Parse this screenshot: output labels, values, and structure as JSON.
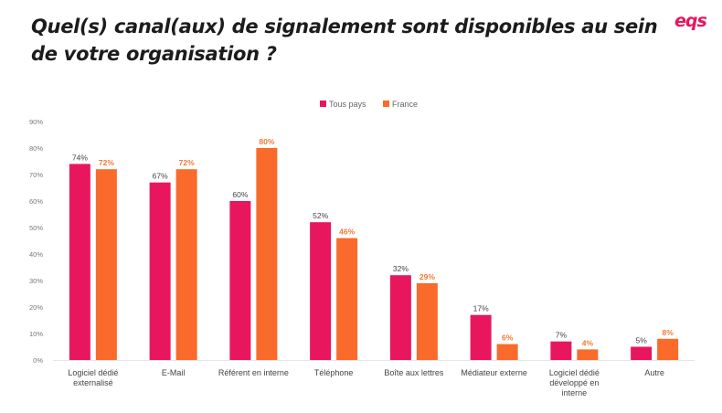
{
  "title": "Quel(s) canal(aux) de signalement sont disponibles au sein de votre organisation ?",
  "logo": "eqs",
  "chart_data": {
    "type": "bar",
    "title": "Quel(s) canal(aux) de signalement sont disponibles au sein de votre organisation ?",
    "xlabel": "",
    "ylabel": "",
    "ylim": [
      0,
      90
    ],
    "yticks": [
      "0%",
      "10%",
      "20%",
      "30%",
      "40%",
      "50%",
      "60%",
      "70%",
      "80%",
      "90%"
    ],
    "legend_position": "top-center",
    "grid": false,
    "categories": [
      [
        "Logiciel dédié",
        "externalisé"
      ],
      [
        "E-Mail"
      ],
      [
        "Référent en interne"
      ],
      [
        "Téléphone"
      ],
      [
        "Boîte aux lettres"
      ],
      [
        "Médiateur externe"
      ],
      [
        "Logiciel dédié",
        "développé en",
        "interne"
      ],
      [
        "Autre"
      ]
    ],
    "series": [
      {
        "name": "Tous pays",
        "color": "#e8175d",
        "label_color": "#444444",
        "values": [
          74,
          67,
          60,
          52,
          32,
          17,
          7,
          5
        ],
        "labels": [
          "74%",
          "67%",
          "60%",
          "52%",
          "32%",
          "17%",
          "7%",
          "5%"
        ]
      },
      {
        "name": "France",
        "color": "#f96a2b",
        "label_color": "#f07b33",
        "values": [
          72,
          72,
          80,
          46,
          29,
          6,
          4,
          8
        ],
        "labels": [
          "72%",
          "72%",
          "80%",
          "46%",
          "29%",
          "6%",
          "4%",
          "8%"
        ]
      }
    ]
  }
}
